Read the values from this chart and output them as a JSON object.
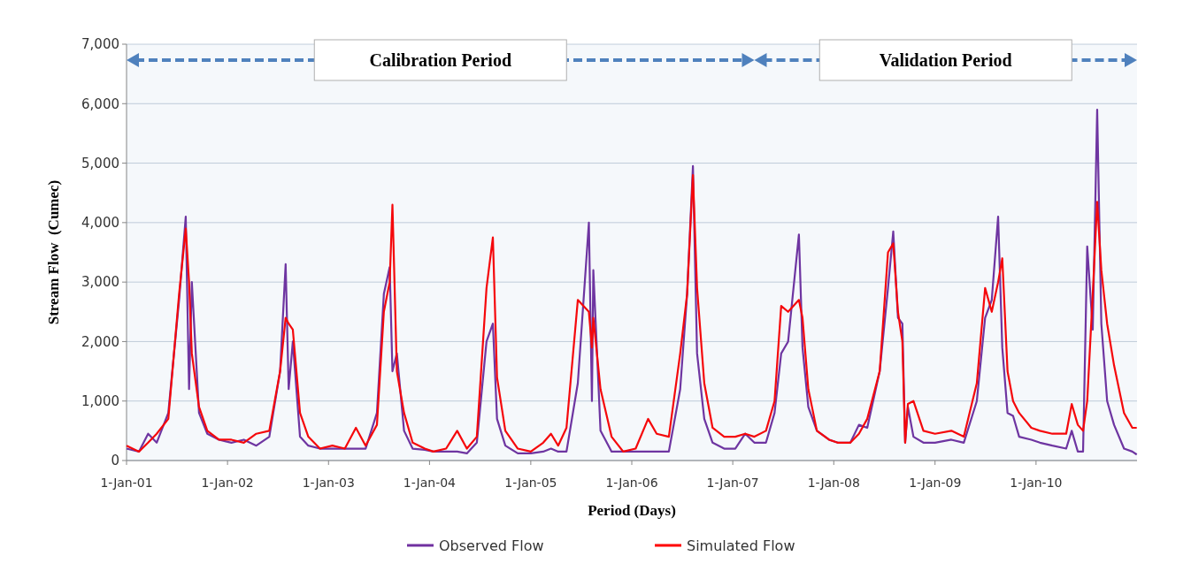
{
  "chart_data": {
    "type": "line",
    "xlabel": "Period (Days)",
    "ylabel": "Stream Flow  (Cumec)",
    "x": [
      "2001-01-01",
      "2001-02-15",
      "2001-03-20",
      "2001-04-20",
      "2001-06-01",
      "2001-07-10",
      "2001-08-03",
      "2001-08-15",
      "2001-08-25",
      "2001-09-20",
      "2001-10-20",
      "2001-12-01",
      "2002-01-15",
      "2002-03-01",
      "2002-04-15",
      "2002-06-01",
      "2002-07-10",
      "2002-07-30",
      "2002-08-10",
      "2002-08-25",
      "2002-09-20",
      "2002-10-20",
      "2002-12-01",
      "2003-01-15",
      "2003-03-01",
      "2003-04-10",
      "2003-05-15",
      "2003-06-25",
      "2003-07-20",
      "2003-08-10",
      "2003-08-20",
      "2003-09-05",
      "2003-10-01",
      "2003-11-01",
      "2003-12-15",
      "2004-01-15",
      "2004-03-01",
      "2004-04-10",
      "2004-05-15",
      "2004-06-20",
      "2004-07-25",
      "2004-08-17",
      "2004-09-01",
      "2004-10-01",
      "2004-11-15",
      "2005-01-01",
      "2005-02-15",
      "2005-03-15",
      "2005-04-10",
      "2005-05-10",
      "2005-06-20",
      "2005-07-30",
      "2005-08-10",
      "2005-08-15",
      "2005-09-10",
      "2005-10-20",
      "2005-12-01",
      "2006-01-15",
      "2006-03-01",
      "2006-04-01",
      "2006-05-15",
      "2006-06-25",
      "2006-07-20",
      "2006-08-10",
      "2006-08-25",
      "2006-09-20",
      "2006-10-20",
      "2006-12-01",
      "2007-01-10",
      "2007-02-15",
      "2007-03-20",
      "2007-05-01",
      "2007-06-01",
      "2007-06-25",
      "2007-07-20",
      "2007-08-28",
      "2007-09-10",
      "2007-10-01",
      "2007-11-01",
      "2007-12-15",
      "2008-01-15",
      "2008-03-01",
      "2008-04-01",
      "2008-05-01",
      "2008-06-15",
      "2008-07-15",
      "2008-08-03",
      "2008-08-20",
      "2008-09-05",
      "2008-09-15",
      "2008-09-25",
      "2008-10-15",
      "2008-11-20",
      "2009-01-01",
      "2009-03-01",
      "2009-04-15",
      "2009-06-01",
      "2009-07-01",
      "2009-07-25",
      "2009-08-17",
      "2009-09-01",
      "2009-09-20",
      "2009-10-10",
      "2009-11-01",
      "2009-12-15",
      "2010-01-15",
      "2010-03-01",
      "2010-04-20",
      "2010-05-10",
      "2010-06-01",
      "2010-06-20",
      "2010-07-05",
      "2010-07-25",
      "2010-08-10",
      "2010-08-25",
      "2010-09-15",
      "2010-10-10",
      "2010-11-15",
      "2010-12-15",
      "2010-12-31"
    ],
    "series": [
      {
        "name": "Observed Flow",
        "color": "#7030a0",
        "values": [
          200,
          150,
          450,
          300,
          800,
          2700,
          4100,
          1200,
          3000,
          800,
          450,
          350,
          300,
          350,
          250,
          400,
          1500,
          3300,
          1200,
          2000,
          400,
          250,
          200,
          200,
          200,
          200,
          200,
          800,
          2800,
          3250,
          1500,
          1800,
          500,
          200,
          180,
          150,
          150,
          150,
          120,
          300,
          2000,
          2300,
          700,
          250,
          120,
          120,
          150,
          200,
          150,
          150,
          1300,
          4000,
          1000,
          3200,
          500,
          150,
          150,
          150,
          150,
          150,
          150,
          1200,
          2800,
          4950,
          1800,
          700,
          300,
          200,
          200,
          450,
          300,
          300,
          800,
          1800,
          2000,
          3800,
          1900,
          900,
          500,
          350,
          300,
          300,
          600,
          550,
          1500,
          2900,
          3850,
          2400,
          2300,
          300,
          900,
          400,
          300,
          300,
          350,
          300,
          1000,
          2400,
          2700,
          4100,
          1900,
          800,
          750,
          400,
          350,
          300,
          250,
          200,
          500,
          150,
          150,
          3600,
          2200,
          5900,
          2300,
          1000,
          600,
          200,
          150,
          100
        ]
      },
      {
        "name": "Simulated Flow",
        "color": "#ff0000",
        "values": [
          250,
          150,
          300,
          450,
          700,
          2800,
          3900,
          3000,
          1800,
          900,
          500,
          350,
          350,
          300,
          450,
          500,
          1500,
          2400,
          2300,
          2200,
          800,
          400,
          200,
          250,
          200,
          550,
          250,
          600,
          2500,
          3000,
          4300,
          1500,
          800,
          300,
          200,
          150,
          200,
          500,
          200,
          400,
          2900,
          3750,
          1400,
          500,
          200,
          150,
          300,
          450,
          250,
          550,
          2700,
          2500,
          1900,
          2400,
          1200,
          400,
          150,
          200,
          700,
          450,
          400,
          1800,
          2800,
          4800,
          2900,
          1300,
          550,
          400,
          400,
          450,
          400,
          500,
          1000,
          2600,
          2500,
          2700,
          2400,
          1200,
          500,
          350,
          300,
          300,
          450,
          700,
          1500,
          3500,
          3650,
          2500,
          2000,
          300,
          950,
          1000,
          500,
          450,
          500,
          400,
          1300,
          2900,
          2500,
          3000,
          3400,
          1500,
          1000,
          800,
          550,
          500,
          450,
          450,
          950,
          600,
          500,
          1000,
          2800,
          4350,
          3200,
          2300,
          1600,
          800,
          550,
          550
        ]
      }
    ],
    "xlim": [
      "2001-01-01",
      "2011-01-01"
    ],
    "xticks": [
      {
        "value": "2001-01-01",
        "label": "1-Jan-01"
      },
      {
        "value": "2002-01-01",
        "label": "1-Jan-02"
      },
      {
        "value": "2003-01-01",
        "label": "1-Jan-03"
      },
      {
        "value": "2004-01-01",
        "label": "1-Jan-04"
      },
      {
        "value": "2005-01-01",
        "label": "1-Jan-05"
      },
      {
        "value": "2006-01-01",
        "label": "1-Jan-06"
      },
      {
        "value": "2007-01-01",
        "label": "1-Jan-07"
      },
      {
        "value": "2008-01-01",
        "label": "1-Jan-08"
      },
      {
        "value": "2009-01-01",
        "label": "1-Jan-09"
      },
      {
        "value": "2010-01-01",
        "label": "1-Jan-10"
      }
    ],
    "ylim": [
      0,
      7000
    ],
    "yticks": [
      0,
      {
        "value": 1000,
        "label": "1,000"
      },
      {
        "value": 2000,
        "label": "2,000"
      },
      {
        "value": 3000,
        "label": "3,000"
      },
      {
        "value": 4000,
        "label": "4,000"
      },
      {
        "value": 5000,
        "label": "5,000"
      },
      {
        "value": 6000,
        "label": "6,000"
      },
      {
        "value": 7000,
        "label": "7,000"
      }
    ],
    "bands": [
      {
        "axis": "x",
        "from": "2001-01-01",
        "to": "2007-03-20",
        "label": "Calibration Period",
        "color": "#4f81bd"
      },
      {
        "axis": "x",
        "from": "2007-03-20",
        "to": "2011-01-01",
        "label": "Validation Period",
        "color": "#4f81bd"
      }
    ],
    "grid": "y",
    "legend": "bottom",
    "marker": "none",
    "line_style": "solid"
  }
}
